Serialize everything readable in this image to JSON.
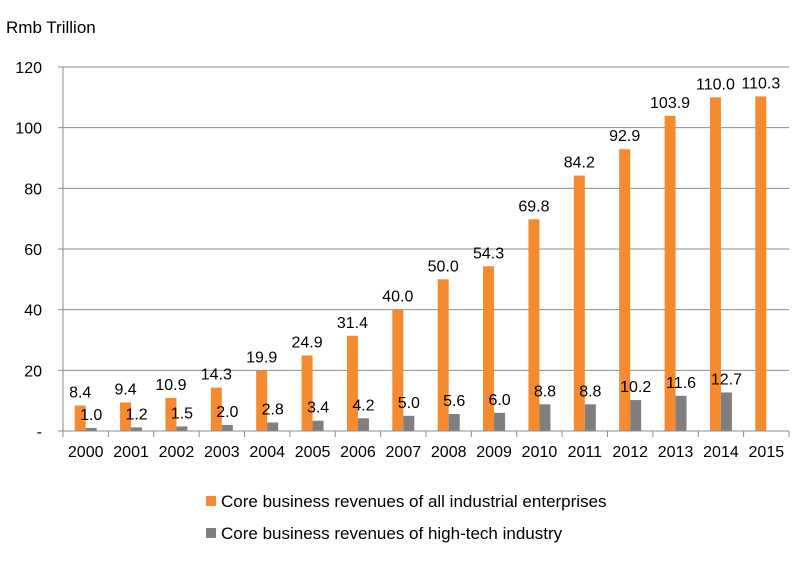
{
  "chart_data": {
    "type": "bar",
    "ylabel": "Rmb Trillion",
    "ylim": [
      0,
      120
    ],
    "y_ticks": [
      {
        "value": 0,
        "label": "-"
      },
      {
        "value": 20,
        "label": "20"
      },
      {
        "value": 40,
        "label": "40"
      },
      {
        "value": 60,
        "label": "60"
      },
      {
        "value": 80,
        "label": "80"
      },
      {
        "value": 100,
        "label": "100"
      },
      {
        "value": 120,
        "label": "120"
      }
    ],
    "grid": true,
    "legend_position": "bottom",
    "categories": [
      "2000",
      "2001",
      "2002",
      "2003",
      "2004",
      "2005",
      "2006",
      "2007",
      "2008",
      "2009",
      "2010",
      "2011",
      "2012",
      "2013",
      "2014",
      "2015"
    ],
    "series": [
      {
        "name": "Core business revenues of all industrial enterprises",
        "color": "#F58A2E",
        "values": [
          8.4,
          9.4,
          10.9,
          14.3,
          19.9,
          24.9,
          31.4,
          40.0,
          50.0,
          54.3,
          69.8,
          84.2,
          92.9,
          103.9,
          110.0,
          110.3
        ],
        "labels": [
          "8.4",
          "9.4",
          "10.9",
          "14.3",
          "19.9",
          "24.9",
          "31.4",
          "40.0",
          "50.0",
          "54.3",
          "69.8",
          "84.2",
          "92.9",
          "103.9",
          "110.0",
          "110.3"
        ]
      },
      {
        "name": "Core business revenues of high-tech industry",
        "color": "#7F7F7F",
        "values": [
          1.0,
          1.2,
          1.5,
          2.0,
          2.8,
          3.4,
          4.2,
          5.0,
          5.6,
          6.0,
          8.8,
          8.8,
          10.2,
          11.6,
          12.7,
          null
        ],
        "labels": [
          "1.0",
          "1.2",
          "1.5",
          "2.0",
          "2.8",
          "3.4",
          "4.2",
          "5.0",
          "5.6",
          "6.0",
          "8.8",
          "8.8",
          "10.2",
          "11.6",
          "12.7",
          null
        ]
      }
    ]
  }
}
